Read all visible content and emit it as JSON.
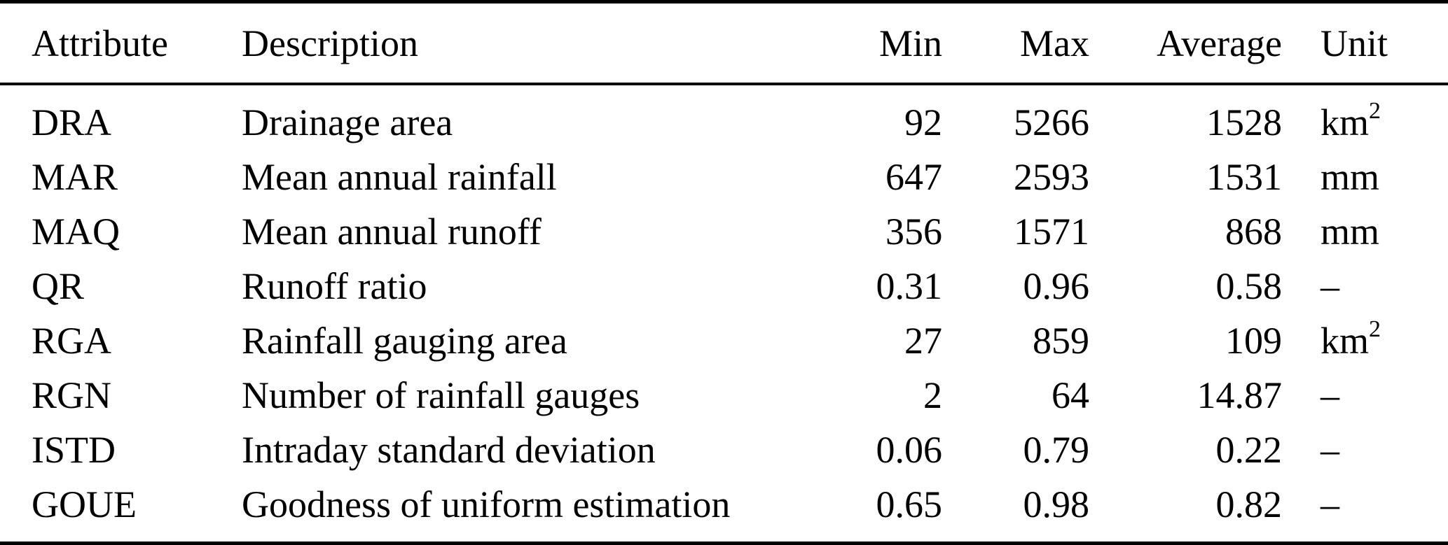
{
  "table": {
    "columns": [
      "Attribute",
      "Description",
      "Min",
      "Max",
      "Average",
      "Unit"
    ],
    "rows": [
      {
        "attribute": "DRA",
        "description": "Drainage area",
        "min": "92",
        "max": "5266",
        "average": "1528",
        "unit": "km",
        "unit_sup": "2"
      },
      {
        "attribute": "MAR",
        "description": "Mean annual rainfall",
        "min": "647",
        "max": "2593",
        "average": "1531",
        "unit": "mm",
        "unit_sup": ""
      },
      {
        "attribute": "MAQ",
        "description": "Mean annual runoff",
        "min": "356",
        "max": "1571",
        "average": "868",
        "unit": "mm",
        "unit_sup": ""
      },
      {
        "attribute": "QR",
        "description": "Runoff ratio",
        "min": "0.31",
        "max": "0.96",
        "average": "0.58",
        "unit": "–",
        "unit_sup": ""
      },
      {
        "attribute": "RGA",
        "description": "Rainfall gauging area",
        "min": "27",
        "max": "859",
        "average": "109",
        "unit": "km",
        "unit_sup": "2"
      },
      {
        "attribute": "RGN",
        "description": "Number of rainfall gauges",
        "min": "2",
        "max": "64",
        "average": "14.87",
        "unit": "–",
        "unit_sup": ""
      },
      {
        "attribute": "ISTD",
        "description": "Intraday standard deviation",
        "min": "0.06",
        "max": "0.79",
        "average": "0.22",
        "unit": "–",
        "unit_sup": ""
      },
      {
        "attribute": "GOUE",
        "description": "Goodness of uniform estimation",
        "min": "0.65",
        "max": "0.98",
        "average": "0.82",
        "unit": "–",
        "unit_sup": ""
      }
    ],
    "colors": {
      "text": "#000000",
      "background": "#ffffff",
      "rule": "#000000"
    }
  },
  "chart_data": {
    "type": "table",
    "columns": [
      "Attribute",
      "Description",
      "Min",
      "Max",
      "Average",
      "Unit"
    ],
    "rows": [
      [
        "DRA",
        "Drainage area",
        92,
        5266,
        1528,
        "km2"
      ],
      [
        "MAR",
        "Mean annual rainfall",
        647,
        2593,
        1531,
        "mm"
      ],
      [
        "MAQ",
        "Mean annual runoff",
        356,
        1571,
        868,
        "mm"
      ],
      [
        "QR",
        "Runoff ratio",
        0.31,
        0.96,
        0.58,
        "–"
      ],
      [
        "RGA",
        "Rainfall gauging area",
        27,
        859,
        109,
        "km2"
      ],
      [
        "RGN",
        "Number of rainfall gauges",
        2,
        64,
        14.87,
        "–"
      ],
      [
        "ISTD",
        "Intraday standard deviation",
        0.06,
        0.79,
        0.22,
        "–"
      ],
      [
        "GOUE",
        "Goodness of uniform estimation",
        0.65,
        0.98,
        0.82,
        "–"
      ]
    ]
  }
}
